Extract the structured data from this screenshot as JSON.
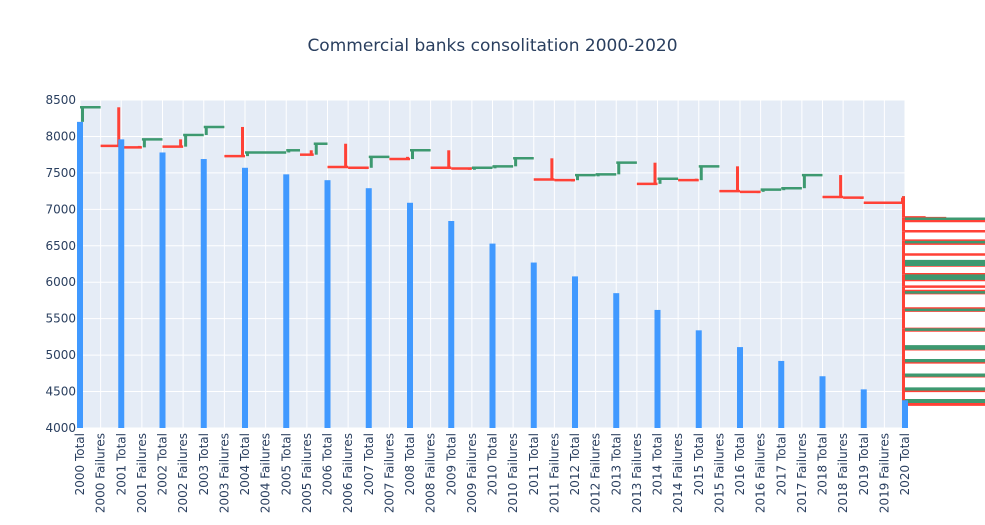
{
  "chart_data": {
    "type": "waterfall",
    "title": "Commercial banks consolitation 2000-2020",
    "xlabel": "",
    "ylabel": "",
    "ylim": [
      4000,
      8500
    ],
    "yticks": [
      4000,
      4500,
      5000,
      5500,
      6000,
      6500,
      7000,
      7500,
      8000,
      8500
    ],
    "grid": true,
    "legend": "none",
    "colors": {
      "total": "#4099ff",
      "increase": "#3d9970",
      "decrease": "#ff4136",
      "plot_bg": "#e5ecf6",
      "grid": "#ffffff",
      "text": "#2a3f5f"
    },
    "categories": [
      "2000 Total",
      "2000 Failures",
      "2001 Total",
      "2001 Failures",
      "2002 Total",
      "2002 Failures",
      "2003 Total",
      "2003 Failures",
      "2004 Total",
      "2004 Failures",
      "2005 Total",
      "2005 Failures",
      "2006 Total",
      "2006 Failures",
      "2007 Total",
      "2007 Failures",
      "2008 Total",
      "2008 Failures",
      "2009 Total",
      "2009 Failures",
      "2010 Total",
      "2010 Failures",
      "2011 Total",
      "2011 Failures",
      "2012 Total",
      "2012 Failures",
      "2013 Total",
      "2013 Failures",
      "2014 Total",
      "2014 Failures",
      "2015 Total",
      "2015 Failures",
      "2016 Total",
      "2016 Failures",
      "2017 Total",
      "2017 Failures",
      "2018 Total",
      "2018 Failures",
      "2019 Total",
      "2019 Failures",
      "2020 Total"
    ],
    "totals": [
      8200,
      7960,
      7780,
      7690,
      7570,
      7480,
      7400,
      7290,
      7090,
      6840,
      6530,
      6270,
      6080,
      5850,
      5620,
      5340,
      5110,
      4920,
      4710,
      4530,
      4380
    ],
    "steps": [
      [
        {
          "from": 8200,
          "to": 8400
        },
        {
          "from": 8400,
          "to": 7870
        }
      ],
      [
        {
          "from": 7870,
          "to": 7850
        },
        {
          "from": 7850,
          "to": 7960
        }
      ],
      [
        {
          "from": 7960,
          "to": 7860
        },
        {
          "from": 7860,
          "to": 8020
        }
      ],
      [
        {
          "from": 8020,
          "to": 8130
        },
        {
          "from": 8130,
          "to": 7730
        }
      ],
      [
        {
          "from": 7730,
          "to": 7780
        }
      ],
      [
        {
          "from": 7780,
          "to": 7810
        },
        {
          "from": 7810,
          "to": 7750
        },
        {
          "from": 7750,
          "to": 7900
        }
      ],
      [
        {
          "from": 7900,
          "to": 7580
        },
        {
          "from": 7580,
          "to": 7570
        }
      ],
      [
        {
          "from": 7570,
          "to": 7720
        },
        {
          "from": 7720,
          "to": 7690
        }
      ],
      [
        {
          "from": 7690,
          "to": 7810
        },
        {
          "from": 7810,
          "to": 7570
        }
      ],
      [
        {
          "from": 7570,
          "to": 7560
        },
        {
          "from": 7560,
          "to": 7570
        }
      ],
      [
        {
          "from": 7570,
          "to": 7590
        },
        {
          "from": 7590,
          "to": 7700
        }
      ],
      [
        {
          "from": 7700,
          "to": 7410
        },
        {
          "from": 7410,
          "to": 7400
        }
      ],
      [
        {
          "from": 7400,
          "to": 7470
        },
        {
          "from": 7470,
          "to": 7480
        }
      ],
      [
        {
          "from": 7480,
          "to": 7640
        },
        {
          "from": 7640,
          "to": 7350
        }
      ],
      [
        {
          "from": 7350,
          "to": 7420
        },
        {
          "from": 7420,
          "to": 7400
        }
      ],
      [
        {
          "from": 7400,
          "to": 7590
        },
        {
          "from": 7590,
          "to": 7250
        }
      ],
      [
        {
          "from": 7250,
          "to": 7240
        },
        {
          "from": 7240,
          "to": 7270
        }
      ],
      [
        {
          "from": 7270,
          "to": 7290
        },
        {
          "from": 7290,
          "to": 7470
        }
      ],
      [
        {
          "from": 7470,
          "to": 7170
        },
        {
          "from": 7170,
          "to": 7160
        }
      ],
      [
        {
          "from": 7160,
          "to": 7090
        }
      ],
      [
        {
          "from": 7090,
          "to": 7180
        },
        {
          "from": 7180,
          "to": 6890
        }
      ],
      [
        {
          "from": 6890,
          "to": 6880
        },
        {
          "from": 6880,
          "to": 6860
        }
      ],
      [
        {
          "from": 6860,
          "to": 6840
        },
        {
          "from": 6840,
          "to": 6870
        }
      ],
      [
        {
          "from": 6870,
          "to": 6700
        },
        {
          "from": 6700,
          "to": 6570
        }
      ],
      [
        {
          "from": 6570,
          "to": 6540
        },
        {
          "from": 6540,
          "to": 6530
        }
      ],
      [
        {
          "from": 6530,
          "to": 6550
        },
        {
          "from": 6550,
          "to": 6380
        }
      ],
      [
        {
          "from": 6380,
          "to": 6230
        },
        {
          "from": 6230,
          "to": 6240
        }
      ],
      [
        {
          "from": 6240,
          "to": 6270
        },
        {
          "from": 6270,
          "to": 6290
        }
      ],
      [
        {
          "from": 6290,
          "to": 6110
        },
        {
          "from": 6110,
          "to": 6030
        }
      ],
      [
        {
          "from": 6030,
          "to": 6050
        },
        {
          "from": 6050,
          "to": 6080
        }
      ],
      [
        {
          "from": 6080,
          "to": 6090
        },
        {
          "from": 6090,
          "to": 5940
        }
      ],
      [
        {
          "from": 5940,
          "to": 5880
        },
        {
          "from": 5880,
          "to": 5870
        }
      ],
      [
        {
          "from": 5870,
          "to": 5850
        },
        {
          "from": 5850,
          "to": 5860
        }
      ],
      [
        {
          "from": 5860,
          "to": 5640
        },
        {
          "from": 5640,
          "to": 5630
        }
      ],
      [
        {
          "from": 5630,
          "to": 5620
        },
        {
          "from": 5620,
          "to": 5610
        }
      ],
      [
        {
          "from": 5610,
          "to": 5620
        },
        {
          "from": 5620,
          "to": 5360
        }
      ],
      [
        {
          "from": 5360,
          "to": 5340
        },
        {
          "from": 5340,
          "to": 5350
        }
      ],
      [
        {
          "from": 5350,
          "to": 5340
        },
        {
          "from": 5340,
          "to": 5350
        }
      ],
      [
        {
          "from": 5350,
          "to": 5080
        },
        {
          "from": 5080,
          "to": 5090
        }
      ],
      [
        {
          "from": 5090,
          "to": 5110
        },
        {
          "from": 5110,
          "to": 5120
        }
      ],
      [
        {
          "from": 5120,
          "to": 4910
        },
        {
          "from": 4910,
          "to": 4900
        }
      ],
      [
        {
          "from": 4900,
          "to": 4920
        },
        {
          "from": 4920,
          "to": 4930
        }
      ],
      [
        {
          "from": 4930,
          "to": 4720
        },
        {
          "from": 4720,
          "to": 4710
        }
      ],
      [
        {
          "from": 4710,
          "to": 4720
        },
        {
          "from": 4720,
          "to": 4730
        }
      ],
      [
        {
          "from": 4730,
          "to": 4530
        },
        {
          "from": 4530,
          "to": 4510
        }
      ],
      [
        {
          "from": 4510,
          "to": 4530
        },
        {
          "from": 4530,
          "to": 4540
        }
      ],
      [
        {
          "from": 4540,
          "to": 4330
        },
        {
          "from": 4330,
          "to": 4320
        }
      ],
      [
        {
          "from": 4320,
          "to": 4360
        },
        {
          "from": 4360,
          "to": 4380
        }
      ]
    ]
  }
}
